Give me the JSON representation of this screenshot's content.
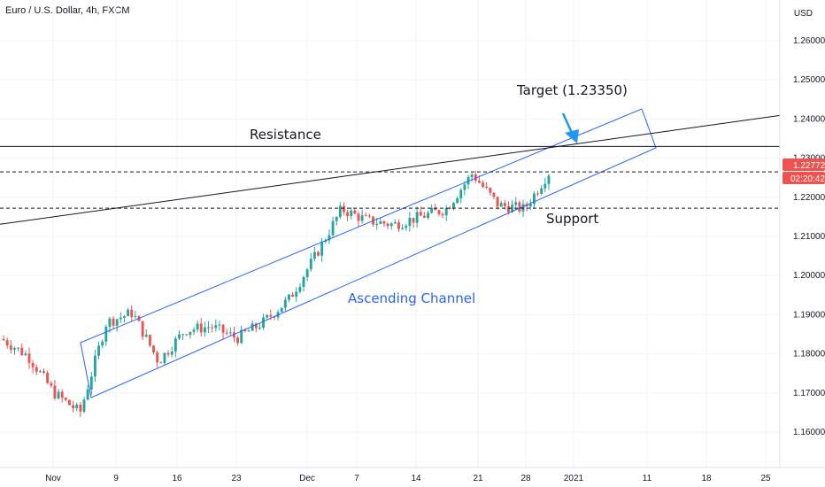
{
  "header": {
    "title": "Euro / U.S. Dollar, 4h, FXCM"
  },
  "currency": "USD",
  "colors": {
    "bull": "#26a69a",
    "bear": "#ef5350",
    "channel": "#2962ff",
    "label_blue": "#2962ff",
    "arrow": "#2196f3",
    "line": "#131722",
    "grid": "#f0f3fa",
    "price_badge": "#ef5350",
    "timer_badge": "#ef5350"
  },
  "chart_data": {
    "type": "candlestick",
    "symbol": "Euro / U.S. Dollar",
    "interval": "4h",
    "source": "FXCM",
    "y_ticks": [
      "1.16000",
      "1.17000",
      "1.18000",
      "1.19000",
      "1.20000",
      "1.21000",
      "1.22000",
      "1.23000",
      "1.24000",
      "1.25000",
      "1.26000"
    ],
    "ylim": [
      1.155,
      1.268
    ],
    "x_ticks": [
      "Nov",
      "9",
      "16",
      "23",
      "Dec",
      "7",
      "14",
      "21",
      "28",
      "2021",
      "11",
      "18",
      "25"
    ],
    "current_price": "1.22772",
    "countdown": "02:20:42",
    "resistance_level": 1.233,
    "support_level": 1.2172,
    "price_dashed_level": 1.2265,
    "annotations": {
      "target": "Target  (1.23350)",
      "resistance": "Resistance",
      "support": "Support",
      "channel": "Ascending  Channel"
    },
    "trend_points": [
      [
        "Nov",
        1.1838
      ],
      [
        "Nov",
        1.1795
      ],
      [
        "Nov",
        1.17
      ],
      [
        "Nov",
        1.165
      ],
      [
        "9",
        1.188
      ],
      [
        "9",
        1.1905
      ],
      [
        "16",
        1.178
      ],
      [
        "16",
        1.186
      ],
      [
        "16",
        1.187
      ],
      [
        "23",
        1.184
      ],
      [
        "23",
        1.188
      ],
      [
        "23",
        1.194
      ],
      [
        "Dec",
        1.205
      ],
      [
        "Dec",
        1.217
      ],
      [
        "7",
        1.214
      ],
      [
        "7",
        1.213
      ],
      [
        "14",
        1.215
      ],
      [
        "14",
        1.217
      ],
      [
        "21",
        1.226
      ],
      [
        "21",
        1.218
      ],
      [
        "28",
        1.217
      ],
      [
        "28",
        1.227
      ]
    ]
  }
}
